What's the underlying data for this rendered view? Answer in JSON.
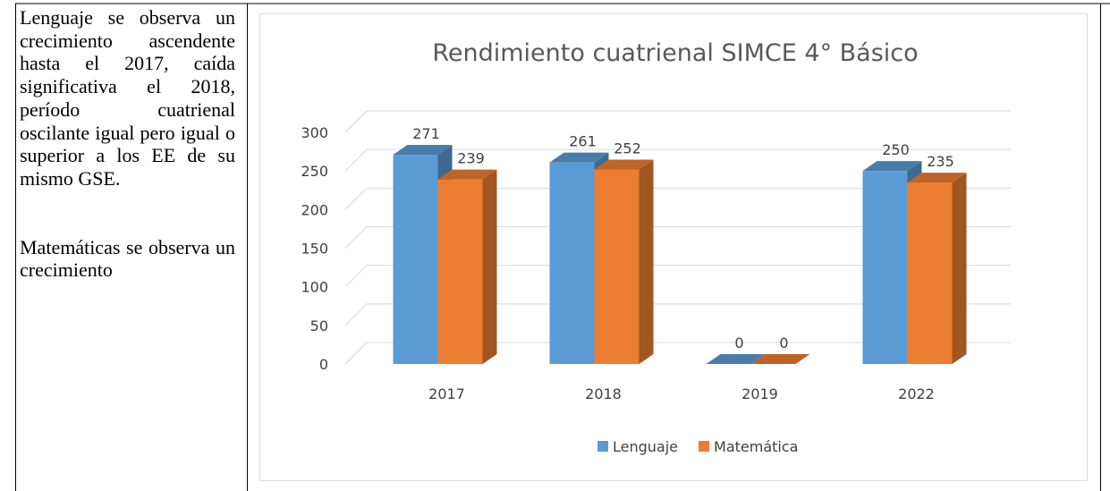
{
  "text_cell": {
    "paragraphs": [
      "Lenguaje se observa un crecimiento ascendente hasta el 2017, caída significativa el 2018, período cuatrienal oscilante igual pero igual o superior a los EE de su mismo GSE.",
      "Matemáticas se observa un crecimiento"
    ]
  },
  "chart_data": {
    "type": "bar3d",
    "title": "Rendimiento cuatrienal SIMCE 4° Básico",
    "categories": [
      "2017",
      "2018",
      "2019",
      "2022"
    ],
    "series": [
      {
        "name": "Lenguaje",
        "color": "#5b9bd5",
        "values": [
          271,
          261,
          0,
          250
        ]
      },
      {
        "name": "Matemática",
        "color": "#ed7d31",
        "values": [
          239,
          252,
          0,
          235
        ]
      }
    ],
    "ylim": [
      0,
      300
    ],
    "yticks": [
      0,
      50,
      100,
      150,
      200,
      250,
      300
    ],
    "grid": true,
    "legend": "bottom"
  }
}
